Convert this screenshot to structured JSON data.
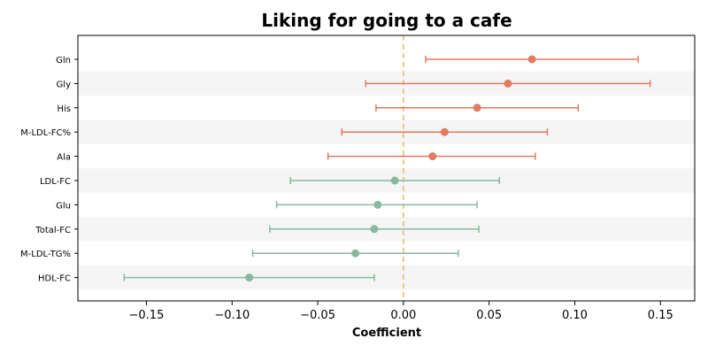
{
  "chart_data": {
    "type": "scatter",
    "title": "Liking for going to a cafe",
    "xlabel": "Coefficient",
    "ylabel": "",
    "xlim": [
      -0.19,
      0.17
    ],
    "xticks": [
      -0.15,
      -0.1,
      -0.05,
      0.0,
      0.05,
      0.1,
      0.15
    ],
    "xtick_labels": [
      "−0.15",
      "−0.10",
      "−0.05",
      "0.00",
      "0.05",
      "0.10",
      "0.15"
    ],
    "reference_line": {
      "x": 0,
      "style": "dashed",
      "color": "#f5c48a"
    },
    "row_band_color": "#f5f5f5",
    "colors": {
      "positive": "#e07b5f",
      "negative": "#86b9a0"
    },
    "categories": [
      "Gln",
      "Gly",
      "His",
      "M-LDL-FC%",
      "Ala",
      "LDL-FC",
      "Glu",
      "Total-FC",
      "M-LDL-TG%",
      "HDL-FC"
    ],
    "points": [
      {
        "label": "Gln",
        "estimate": 0.075,
        "ci_low": 0.013,
        "ci_high": 0.137,
        "group": "positive"
      },
      {
        "label": "Gly",
        "estimate": 0.061,
        "ci_low": -0.022,
        "ci_high": 0.144,
        "group": "positive"
      },
      {
        "label": "His",
        "estimate": 0.043,
        "ci_low": -0.016,
        "ci_high": 0.102,
        "group": "positive"
      },
      {
        "label": "M-LDL-FC%",
        "estimate": 0.024,
        "ci_low": -0.036,
        "ci_high": 0.084,
        "group": "positive"
      },
      {
        "label": "Ala",
        "estimate": 0.017,
        "ci_low": -0.044,
        "ci_high": 0.077,
        "group": "positive"
      },
      {
        "label": "LDL-FC",
        "estimate": -0.005,
        "ci_low": -0.066,
        "ci_high": 0.056,
        "group": "negative"
      },
      {
        "label": "Glu",
        "estimate": -0.015,
        "ci_low": -0.074,
        "ci_high": 0.043,
        "group": "negative"
      },
      {
        "label": "Total-FC",
        "estimate": -0.017,
        "ci_low": -0.078,
        "ci_high": 0.044,
        "group": "negative"
      },
      {
        "label": "M-LDL-TG%",
        "estimate": -0.028,
        "ci_low": -0.088,
        "ci_high": 0.032,
        "group": "negative"
      },
      {
        "label": "HDL-FC",
        "estimate": -0.09,
        "ci_low": -0.163,
        "ci_high": -0.017,
        "group": "negative"
      }
    ]
  }
}
